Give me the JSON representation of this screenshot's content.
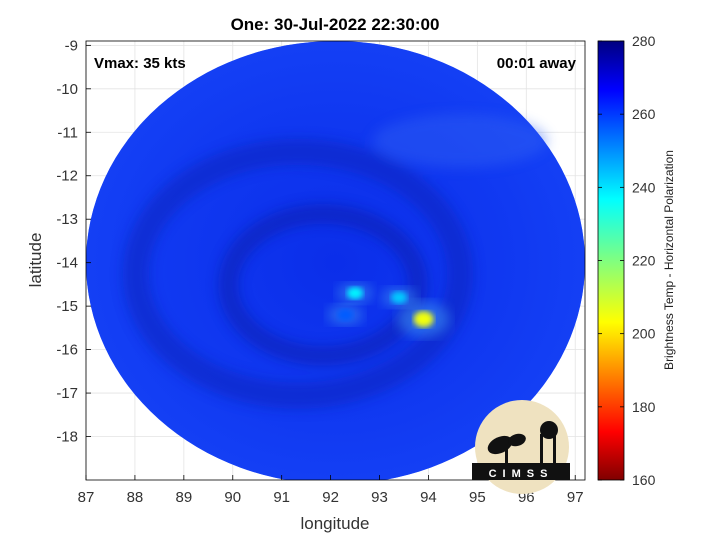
{
  "chart_data": {
    "type": "heatmap",
    "title": "One: 30-Jul-2022 22:30:00",
    "xlabel": "longitude",
    "ylabel": "latitude",
    "xlim": [
      87,
      97.2
    ],
    "ylim": [
      -19,
      -8.9
    ],
    "x_ticks": [
      "87",
      "88",
      "89",
      "90",
      "91",
      "92",
      "93",
      "94",
      "95",
      "96",
      "97"
    ],
    "y_ticks": [
      "-9",
      "-10",
      "-11",
      "-12",
      "-13",
      "-14",
      "-15",
      "-16",
      "-17",
      "-18"
    ],
    "grid": true,
    "annotations": {
      "top_left": "Vmax: 35 kts",
      "top_right": "00:01 away"
    },
    "colorbar": {
      "label": "Brightness Temp - Horizontal Polarization",
      "range": [
        160,
        280
      ],
      "ticks": [
        "280",
        "260",
        "240",
        "220",
        "200",
        "180",
        "160"
      ],
      "colormap": "jet"
    },
    "swath": {
      "center_lon": 92.1,
      "center_lat": -14.0,
      "radius_deg": 5.1,
      "background_value": 262
    },
    "features": [
      {
        "lon": 92.5,
        "lat": -14.7,
        "value": 238
      },
      {
        "lon": 93.9,
        "lat": -15.3,
        "value": 205
      },
      {
        "lon": 93.4,
        "lat": -14.8,
        "value": 243
      },
      {
        "lon": 92.3,
        "lat": -15.2,
        "value": 256
      }
    ],
    "logo": "CIMSS"
  }
}
